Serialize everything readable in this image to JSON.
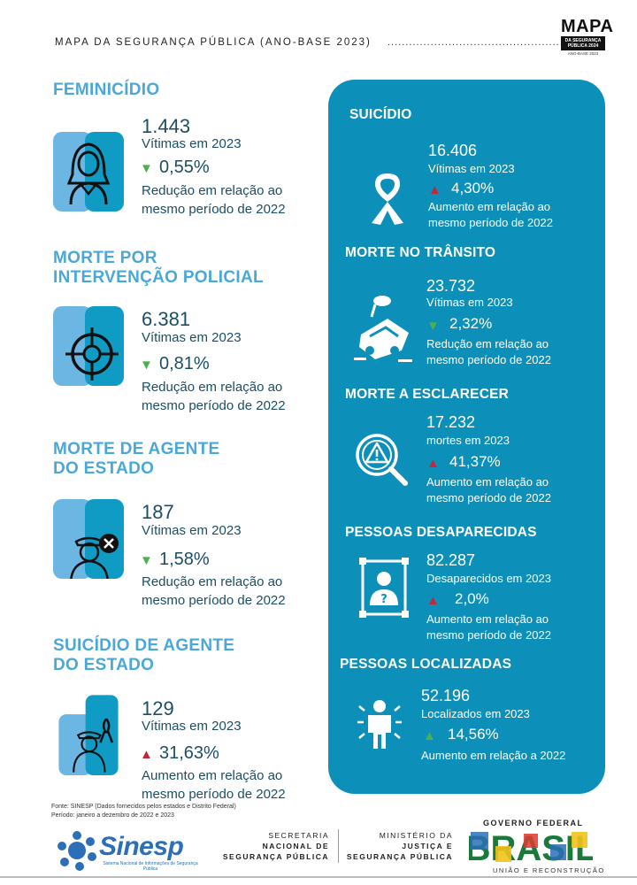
{
  "header": {
    "title": "MAPA DA SEGURANÇA PÚBLICA (ANO-BASE 2023)",
    "dots": ".................................................",
    "logo_big": "MAPA",
    "logo_box": "DA SEGURANÇA PÚBLICA 2024",
    "logo_small": "ANO-BASE 2023"
  },
  "left": [
    {
      "title": [
        "FEMINICÍDIO"
      ],
      "number": "1.443",
      "sub": "Vítimas em 2023",
      "pct": "0,55%",
      "dir": "down",
      "desc1": "Redução em relação ao",
      "desc2": "mesmo período de 2022",
      "icon": "woman-icon"
    },
    {
      "title": [
        "MORTE POR",
        "INTERVENÇÃO POLICIAL"
      ],
      "number": "6.381",
      "sub": "Vítimas em 2023",
      "pct": "0,81%",
      "dir": "down",
      "desc1": "Redução em relação ao",
      "desc2": "mesmo período de 2022",
      "icon": "target-icon"
    },
    {
      "title": [
        "MORTE DE AGENTE",
        "DO ESTADO"
      ],
      "number": "187",
      "sub": "Vítimas em 2023",
      "pct": "1,58%",
      "dir": "down",
      "desc1": "Redução em relação ao",
      "desc2": "mesmo período de 2022",
      "icon": "officer-x-icon"
    },
    {
      "title": [
        "SUICÍDIO DE AGENTE",
        "DO ESTADO"
      ],
      "number": "129",
      "sub": "Vítimas em 2023",
      "pct": "31,63%",
      "dir": "up",
      "desc1": "Aumento em relação ao",
      "desc2": "mesmo período de 2022",
      "icon": "officer-ribbon-icon"
    }
  ],
  "right": [
    {
      "title": "SUICÍDIO",
      "number": "16.406",
      "sub": "Vítimas em 2023",
      "pct": "4,30%",
      "dir": "up",
      "desc1": "Aumento em relação ao",
      "desc2": "mesmo período de 2022",
      "icon": "ribbon-icon"
    },
    {
      "title": "MORTE NO TRÂNSITO",
      "number": "23.732",
      "sub": "Vítimas em 2023",
      "pct": "2,32%",
      "dir": "down",
      "desc1": "Redução em relação ao",
      "desc2": "mesmo período de 2022",
      "icon": "car-crash-icon"
    },
    {
      "title": "MORTE A ESCLARECER",
      "number": "17.232",
      "sub": "mortes em 2023",
      "pct": "41,37%",
      "dir": "up",
      "desc1": "Aumento em relação ao",
      "desc2": "mesmo período de 2022",
      "icon": "magnifier-warning-icon"
    },
    {
      "title": "PESSOAS DESAPARECIDAS",
      "number": "82.287",
      "sub": "Desaparecidos em 2023",
      "pct": "2,0%",
      "dir": "up",
      "desc1": "Aumento em relação ao",
      "desc2": "mesmo período de 2022",
      "icon": "missing-person-icon"
    },
    {
      "title": "PESSOAS LOCALIZADAS",
      "number": "52.196",
      "sub": "Localizados em 2023",
      "pct": "14,56%",
      "dir": "up-green",
      "desc1": "Aumento em relação a 2022",
      "desc2": "",
      "icon": "found-person-icon"
    }
  ],
  "source": {
    "line1": "Fonte: SINESP (Dados fornecidos pelos estados e Distrito Federal)",
    "line2": "Período: janeiro a dezembro de 2022 e 2023"
  },
  "footer": {
    "sinesp": "Sinesp",
    "sinesp_sub": "Sistema Nacional de Informações de Segurança Pública",
    "secretaria": [
      "SECRETARIA",
      "NACIONAL DE",
      "SEGURANÇA PÚBLICA"
    ],
    "ministerio": [
      "MINISTÉRIO DA",
      "JUSTIÇA E",
      "SEGURANÇA PÚBLICA"
    ],
    "gov_top": "GOVERNO FEDERAL",
    "gov_brasil": "BRASIL",
    "gov_bottom": "UNIÃO E RECONSTRUÇÃO"
  },
  "colors": {
    "accent": "#4aa8d8",
    "panel": "#0c90b9",
    "text": "#1c4e66",
    "up": "#c0283b",
    "down": "#4caf50"
  }
}
